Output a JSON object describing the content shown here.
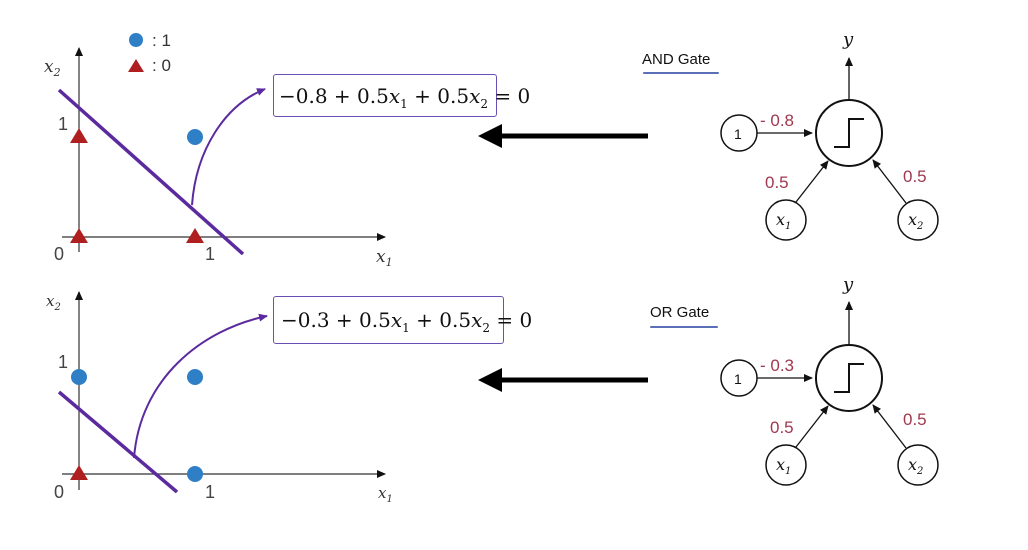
{
  "legend": {
    "class1_label": ": 1",
    "class0_label": ": 0",
    "class1_color": "#2f7fc7",
    "class0_color": "#b01f1f"
  },
  "colors": {
    "decision_line": "#5b2a9e",
    "weight_text": "#a0384f",
    "equation_box": "#6a4fb5",
    "arrow": "#000000"
  },
  "panels": [
    {
      "gate_name": "AND Gate",
      "equation": {
        "bias": "−0.8",
        "term1_coef": " + 0.5",
        "term2_coef": " + 0.5",
        "var": "x",
        "sub1": "1",
        "sub2": "2",
        "rhs": " = 0"
      },
      "axis_labels": {
        "x": "x",
        "x_sub": "1",
        "y": "x",
        "y_sub": "2"
      },
      "tick_labels": {
        "origin": "0",
        "x_one": "1",
        "y_one": "1"
      },
      "points": [
        {
          "x": 0,
          "y": 0,
          "class": 0
        },
        {
          "x": 1,
          "y": 0,
          "class": 0
        },
        {
          "x": 0,
          "y": 1,
          "class": 0
        },
        {
          "x": 1,
          "y": 1,
          "class": 1
        }
      ],
      "perceptron": {
        "output_label": "y",
        "bias_input_label": "1",
        "bias_weight": "- 0.8",
        "w1": "0.5",
        "w2": "0.5",
        "input1": "x",
        "input1_sub": "1",
        "input2": "x",
        "input2_sub": "2"
      }
    },
    {
      "gate_name": "OR Gate",
      "equation": {
        "bias": "−0.3",
        "term1_coef": " + 0.5",
        "term2_coef": " + 0.5",
        "var": "x",
        "sub1": "1",
        "sub2": "2",
        "rhs": " = 0"
      },
      "axis_labels": {
        "x": "x",
        "x_sub": "1",
        "y": "x",
        "y_sub": "2"
      },
      "tick_labels": {
        "origin": "0",
        "x_one": "1",
        "y_one": "1"
      },
      "points": [
        {
          "x": 0,
          "y": 0,
          "class": 0
        },
        {
          "x": 1,
          "y": 0,
          "class": 1
        },
        {
          "x": 0,
          "y": 1,
          "class": 1
        },
        {
          "x": 1,
          "y": 1,
          "class": 1
        }
      ],
      "perceptron": {
        "output_label": "y",
        "bias_input_label": "1",
        "bias_weight": "- 0.3",
        "w1": "0.5",
        "w2": "0.5",
        "input1": "x",
        "input1_sub": "1",
        "input2": "x",
        "input2_sub": "2"
      }
    }
  ]
}
